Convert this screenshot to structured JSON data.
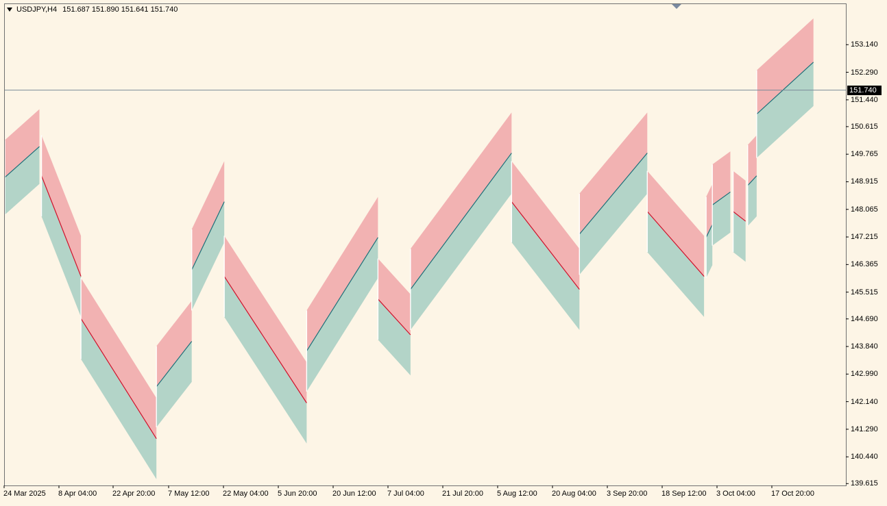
{
  "header": {
    "symbol": "USDJPY,H4",
    "ohlc": "151.687 151.890 151.641 151.740"
  },
  "current_price": "151.740",
  "colors": {
    "background": "#fdf5e6",
    "upper_band": "#f2b2b2",
    "lower_band": "#b3d4c8",
    "down_line": "#d0102a",
    "up_line": "#1c6f78",
    "up_candle": "#4a78c0",
    "down_candle": "#c04a4a",
    "price_line": "#7a8a99"
  },
  "chart_data": {
    "type": "area",
    "title": "USDJPY,H4",
    "x_tick_labels": [
      "24 Mar 2025",
      "8 Apr 04:00",
      "22 Apr 20:00",
      "7 May 12:00",
      "22 May 04:00",
      "5 Jun 20:00",
      "20 Jun 12:00",
      "7 Jul 04:00",
      "21 Jul 20:00",
      "5 Aug 12:00",
      "20 Aug 04:00",
      "3 Sep 20:00",
      "18 Sep 12:00",
      "3 Oct 04:00",
      "17 Oct 20:00"
    ],
    "y_tick_labels": [
      "153.140",
      "152.290",
      "151.440",
      "150.615",
      "149.765",
      "148.915",
      "148.065",
      "147.215",
      "146.365",
      "145.515",
      "144.690",
      "143.840",
      "142.990",
      "142.140",
      "141.290",
      "140.440",
      "139.615"
    ],
    "ylim": [
      139.6,
      154.2
    ],
    "current_price": 151.74,
    "segments": [
      {
        "direction": "up",
        "start": 0,
        "end": 5,
        "mid_start": 149.05,
        "mid_end": 150.0,
        "upper_w": 1.15,
        "lower_w": 1.15
      },
      {
        "direction": "down",
        "start": 5.3,
        "end": 11.0,
        "mid_start": 149.1,
        "mid_end": 146.0,
        "upper_w": 1.25,
        "lower_w": 1.25
      },
      {
        "direction": "down",
        "start": 11.0,
        "end": 21.9,
        "mid_start": 144.7,
        "mid_end": 141.0,
        "upper_w": 1.25,
        "lower_w": 1.25
      },
      {
        "direction": "up",
        "start": 21.9,
        "end": 27.0,
        "mid_start": 142.6,
        "mid_end": 144.0,
        "upper_w": 1.25,
        "lower_w": 1.25
      },
      {
        "direction": "up",
        "start": 27.0,
        "end": 31.7,
        "mid_start": 146.2,
        "mid_end": 148.3,
        "upper_w": 1.25,
        "lower_w": 1.25
      },
      {
        "direction": "down",
        "start": 31.7,
        "end": 43.6,
        "mid_start": 146.0,
        "mid_end": 142.1,
        "upper_w": 1.25,
        "lower_w": 1.25
      },
      {
        "direction": "up",
        "start": 43.6,
        "end": 53.9,
        "mid_start": 143.7,
        "mid_end": 147.2,
        "upper_w": 1.25,
        "lower_w": 1.25
      },
      {
        "direction": "down",
        "start": 53.9,
        "end": 58.6,
        "mid_start": 145.3,
        "mid_end": 144.2,
        "upper_w": 1.25,
        "lower_w": 1.25
      },
      {
        "direction": "up",
        "start": 58.6,
        "end": 73.2,
        "mid_start": 145.6,
        "mid_end": 149.8,
        "upper_w": 1.25,
        "lower_w": 1.25
      },
      {
        "direction": "down",
        "start": 73.2,
        "end": 83.0,
        "mid_start": 148.3,
        "mid_end": 145.6,
        "upper_w": 1.25,
        "lower_w": 1.25
      },
      {
        "direction": "up",
        "start": 83.0,
        "end": 92.8,
        "mid_start": 147.3,
        "mid_end": 149.8,
        "upper_w": 1.25,
        "lower_w": 1.25
      },
      {
        "direction": "down",
        "start": 92.8,
        "end": 101.0,
        "mid_start": 148.0,
        "mid_end": 146.0,
        "upper_w": 1.25,
        "lower_w": 1.25
      },
      {
        "direction": "up",
        "start": 101.3,
        "end": 102.2,
        "mid_start": 147.2,
        "mid_end": 147.6,
        "upper_w": 1.25,
        "lower_w": 1.25
      },
      {
        "direction": "up",
        "start": 102.2,
        "end": 104.8,
        "mid_start": 148.2,
        "mid_end": 148.6,
        "upper_w": 1.25,
        "lower_w": 1.25
      },
      {
        "direction": "down",
        "start": 105.2,
        "end": 107.0,
        "mid_start": 148.0,
        "mid_end": 147.7,
        "upper_w": 1.25,
        "lower_w": 1.25
      },
      {
        "direction": "up",
        "start": 107.3,
        "end": 108.6,
        "mid_start": 148.8,
        "mid_end": 149.1,
        "upper_w": 1.25,
        "lower_w": 1.25
      },
      {
        "direction": "up",
        "start": 108.6,
        "end": 116.8,
        "mid_start": 151.0,
        "mid_end": 152.6,
        "upper_w": 1.35,
        "lower_w": 1.35
      }
    ]
  }
}
